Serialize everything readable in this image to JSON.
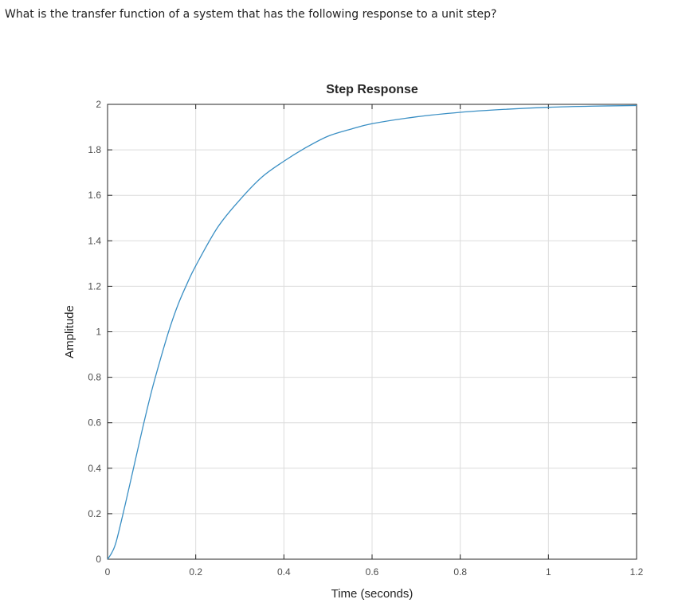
{
  "question": "What is the transfer function of a system that has the following response to a unit step?",
  "colors": {
    "line": "#3a8fc4",
    "grid": "#dcdcdc",
    "axis": "#262626"
  },
  "chart_data": {
    "type": "line",
    "title": "Step Response",
    "xlabel": "Time (seconds)",
    "ylabel": "Amplitude",
    "xlim": [
      0,
      1.2
    ],
    "ylim": [
      0,
      2
    ],
    "xticks": [
      0,
      0.2,
      0.4,
      0.6,
      0.8,
      1,
      1.2
    ],
    "xtick_labels": [
      "0",
      "0.2",
      "0.4",
      "0.6",
      "0.8",
      "1",
      "1.2"
    ],
    "yticks": [
      0,
      0.2,
      0.4,
      0.6,
      0.8,
      1,
      1.2,
      1.4,
      1.6,
      1.8,
      2
    ],
    "ytick_labels": [
      "0",
      "0.2",
      "0.4",
      "0.6",
      "0.8",
      "1",
      "1.2",
      "1.4",
      "1.6",
      "1.8",
      "2"
    ],
    "grid": true,
    "series": [
      {
        "x": [
          0,
          0.01,
          0.02,
          0.04,
          0.06,
          0.08,
          0.1,
          0.12,
          0.14,
          0.16,
          0.18,
          0.2,
          0.25,
          0.3,
          0.35,
          0.4,
          0.45,
          0.5,
          0.55,
          0.6,
          0.7,
          0.8,
          0.9,
          1.0,
          1.1,
          1.2
        ],
        "y": [
          0,
          0.03,
          0.08,
          0.24,
          0.41,
          0.58,
          0.74,
          0.88,
          1.01,
          1.12,
          1.21,
          1.29,
          1.46,
          1.58,
          1.68,
          1.75,
          1.81,
          1.86,
          1.89,
          1.915,
          1.945,
          1.965,
          1.978,
          1.987,
          1.992,
          1.995
        ]
      }
    ]
  }
}
